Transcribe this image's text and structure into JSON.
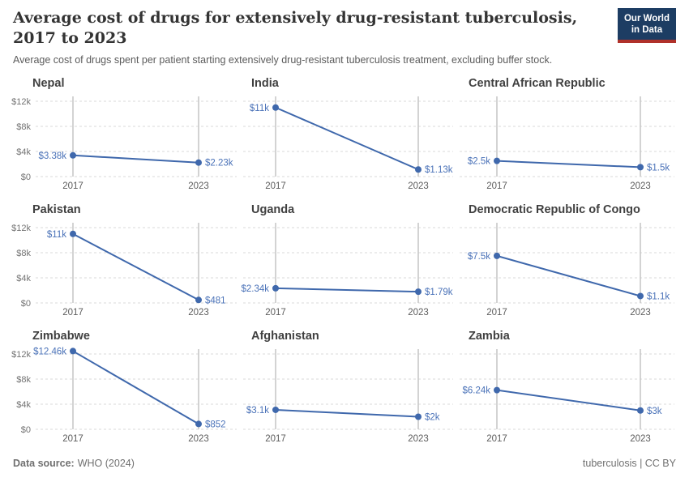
{
  "header": {
    "title": "Average cost of drugs for extensively drug-resistant tuberculosis,\n2017 to 2023",
    "subtitle": "Average cost of drugs spent per patient starting extensively drug-resistant tuberculosis treatment, excluding buffer stock.",
    "logo": {
      "line1": "Our World",
      "line2": "in Data",
      "bg_color": "#1d3d63",
      "accent_color": "#b0312a"
    }
  },
  "chart_data": {
    "type": "line",
    "x": [
      2017,
      2023
    ],
    "x_tick_labels": [
      "2017",
      "2023"
    ],
    "ylim": [
      0,
      12000
    ],
    "y_ticks": [
      0,
      4000,
      8000,
      12000
    ],
    "y_tick_labels": [
      "$0",
      "$4k",
      "$8k",
      "$12k"
    ],
    "grid": true,
    "legend": "none",
    "series_color": "#3f68ac",
    "label_color": "#4a72b8",
    "charts": [
      {
        "title": "Nepal",
        "values": [
          3380,
          2230
        ],
        "labels": [
          "$3.38k",
          "$2.23k"
        ]
      },
      {
        "title": "India",
        "values": [
          11000,
          1130
        ],
        "labels": [
          "$11k",
          "$1.13k"
        ]
      },
      {
        "title": "Central African Republic",
        "values": [
          2500,
          1500
        ],
        "labels": [
          "$2.5k",
          "$1.5k"
        ]
      },
      {
        "title": "Pakistan",
        "values": [
          11000,
          481
        ],
        "labels": [
          "$11k",
          "$481"
        ]
      },
      {
        "title": "Uganda",
        "values": [
          2340,
          1790
        ],
        "labels": [
          "$2.34k",
          "$1.79k"
        ]
      },
      {
        "title": "Democratic Republic of Congo",
        "values": [
          7500,
          1100
        ],
        "labels": [
          "$7.5k",
          "$1.1k"
        ]
      },
      {
        "title": "Zimbabwe",
        "values": [
          12460,
          852
        ],
        "labels": [
          "$12.46k",
          "$852"
        ]
      },
      {
        "title": "Afghanistan",
        "values": [
          3100,
          2000
        ],
        "labels": [
          "$3.1k",
          "$2k"
        ]
      },
      {
        "title": "Zambia",
        "values": [
          6240,
          3000
        ],
        "labels": [
          "$6.24k",
          "$3k"
        ]
      }
    ]
  },
  "footer": {
    "source_label": "Data source:",
    "source_value": "WHO (2024)",
    "right_text": "tuberculosis | CC BY"
  }
}
